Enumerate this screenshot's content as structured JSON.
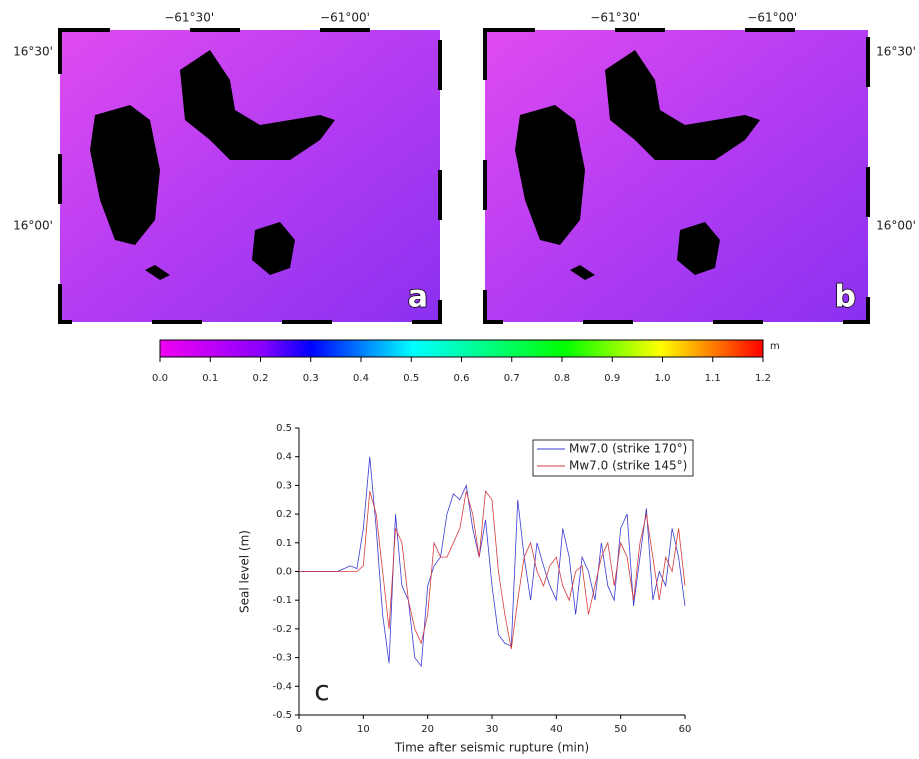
{
  "maps": [
    {
      "label": "a",
      "lon_ticks": [
        "−61°30'",
        "−61°00'"
      ],
      "lat_ticks": [
        "16°30'",
        "16°00'"
      ]
    },
    {
      "label": "b",
      "lon_ticks": [
        "−61°30'",
        "−61°00'"
      ],
      "lat_ticks": [
        "16°30'",
        "16°00'"
      ]
    }
  ],
  "colorbar": {
    "unit": "m",
    "lim": [
      0,
      1.2
    ],
    "ticks": [
      {
        "value": 0,
        "label": "0.0"
      },
      0.1,
      0.2,
      0.3,
      0.4,
      0.5,
      0.6,
      0.7,
      0.8,
      0.9,
      {
        "value": 1,
        "label": "1.0"
      },
      1.1,
      1.2
    ]
  },
  "chart_data": {
    "type": "line",
    "panel_label": "c",
    "xlabel": "Time after seismic rupture (min)",
    "ylabel": "Seal level (m)",
    "xlim": [
      0,
      60
    ],
    "xticks": [
      0,
      10,
      20,
      30,
      40,
      50,
      60
    ],
    "ylim": [
      -0.5,
      0.5
    ],
    "yticks": [
      -0.5,
      -0.4,
      -0.3,
      -0.2,
      -0.1,
      {
        "value": 0,
        "label": "0.0"
      },
      0.1,
      0.2,
      0.3,
      0.4,
      0.5
    ],
    "legend": "upper right",
    "x": [
      0,
      1,
      2,
      3,
      4,
      5,
      6,
      7,
      8,
      9,
      10,
      11,
      12,
      13,
      14,
      15,
      16,
      17,
      18,
      19,
      20,
      21,
      22,
      23,
      24,
      25,
      26,
      27,
      28,
      29,
      30,
      31,
      32,
      33,
      34,
      35,
      36,
      37,
      38,
      39,
      40,
      41,
      42,
      43,
      44,
      45,
      46,
      47,
      48,
      49,
      50,
      51,
      52,
      53,
      54,
      55,
      56,
      57,
      58,
      59,
      60
    ],
    "series": [
      {
        "name": "Mw7.0 (strike 170°)",
        "color": "#3b3bd6",
        "values": [
          0,
          0,
          0,
          0,
          0,
          0,
          0,
          0.01,
          0.02,
          0.01,
          0.15,
          0.4,
          0.15,
          -0.15,
          -0.32,
          0.2,
          -0.05,
          -0.1,
          -0.3,
          -0.33,
          -0.05,
          0.02,
          0.05,
          0.2,
          0.27,
          0.25,
          0.3,
          0.15,
          0.05,
          0.18,
          -0.05,
          -0.22,
          -0.25,
          -0.26,
          0.25,
          0.05,
          -0.1,
          0.1,
          0.02,
          -0.05,
          -0.1,
          0.15,
          0.05,
          -0.15,
          0.05,
          0.0,
          -0.1,
          0.1,
          -0.05,
          -0.1,
          0.15,
          0.2,
          -0.12,
          0.05,
          0.22,
          -0.1,
          0.0,
          -0.05,
          0.15,
          0.05,
          -0.12
        ]
      },
      {
        "name": "Mw7.0 (strike 145°)",
        "color": "#d63b3b",
        "values": [
          0,
          0,
          0,
          0,
          0,
          0,
          0,
          0,
          0,
          0,
          0.02,
          0.28,
          0.2,
          0.0,
          -0.2,
          0.15,
          0.1,
          -0.1,
          -0.2,
          -0.25,
          -0.15,
          0.1,
          0.05,
          0.05,
          0.1,
          0.15,
          0.28,
          0.2,
          0.05,
          0.28,
          0.25,
          0.0,
          -0.15,
          -0.27,
          -0.1,
          0.05,
          0.1,
          0.0,
          -0.05,
          0.02,
          0.05,
          -0.05,
          -0.1,
          0.0,
          0.02,
          -0.15,
          -0.05,
          0.05,
          0.1,
          -0.05,
          0.1,
          0.05,
          -0.1,
          0.1,
          0.2,
          0.05,
          -0.1,
          0.05,
          0.0,
          0.15,
          -0.05
        ]
      }
    ]
  }
}
